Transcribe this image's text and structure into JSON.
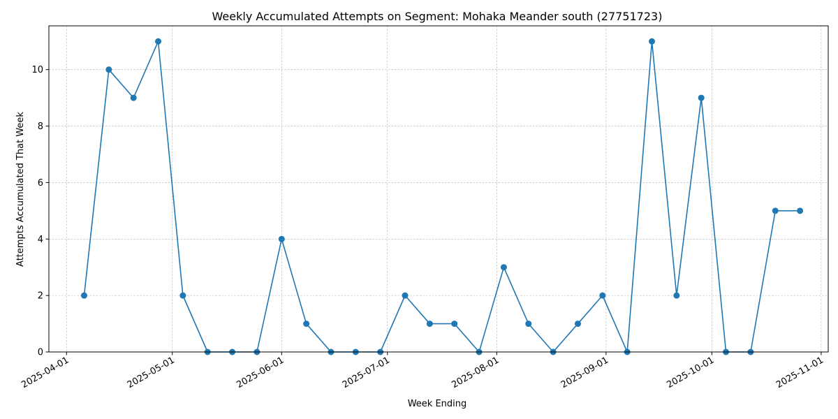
{
  "chart_data": {
    "type": "line",
    "title": "Weekly Accumulated Attempts on Segment: Mohaka Meander south (27751723)",
    "xlabel": "Week Ending",
    "ylabel": "Attempts Accumulated That Week",
    "x_type": "date",
    "xlim": [
      "2025-03-27",
      "2025-11-03"
    ],
    "ylim": [
      0,
      11.55
    ],
    "x_ticks": [
      "2025-04-01",
      "2025-05-01",
      "2025-06-01",
      "2025-07-01",
      "2025-08-01",
      "2025-09-01",
      "2025-10-01",
      "2025-11-01"
    ],
    "y_ticks": [
      0,
      2,
      4,
      6,
      8,
      10
    ],
    "grid": true,
    "line_color": "#1f77b4",
    "marker": "circle",
    "series": [
      {
        "x": [
          "2025-04-06",
          "2025-04-13",
          "2025-04-20",
          "2025-04-27",
          "2025-05-04",
          "2025-05-11",
          "2025-05-18",
          "2025-05-25",
          "2025-06-01",
          "2025-06-08",
          "2025-06-15",
          "2025-06-22",
          "2025-06-29",
          "2025-07-06",
          "2025-07-13",
          "2025-07-20",
          "2025-07-27",
          "2025-08-03",
          "2025-08-10",
          "2025-08-17",
          "2025-08-24",
          "2025-08-31",
          "2025-09-07",
          "2025-09-14",
          "2025-09-21",
          "2025-09-28",
          "2025-10-05",
          "2025-10-12",
          "2025-10-19",
          "2025-10-26"
        ],
        "values": [
          2,
          10,
          9,
          11,
          2,
          0,
          0,
          0,
          4,
          1,
          0,
          0,
          0,
          2,
          1,
          1,
          0,
          3,
          1,
          0,
          1,
          2,
          0,
          11,
          2,
          9,
          0,
          0,
          5,
          5
        ]
      }
    ]
  }
}
